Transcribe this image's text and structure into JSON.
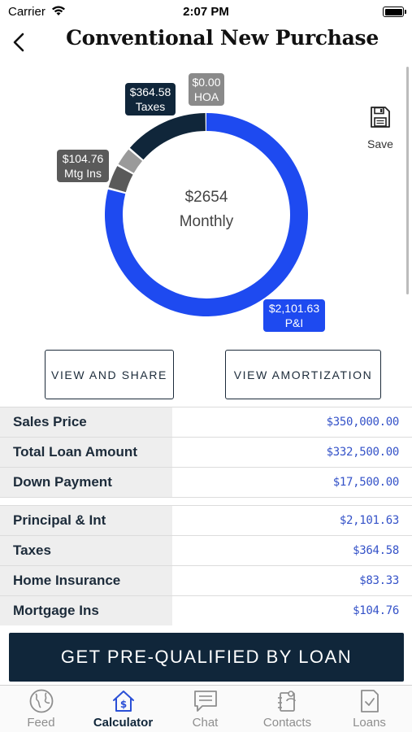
{
  "status_bar": {
    "carrier": "Carrier",
    "time": "2:07 PM"
  },
  "nav": {
    "title": "Conventional New Purchase"
  },
  "save": {
    "label": "Save"
  },
  "chart": {
    "center_amount": "$2654",
    "center_label": "Monthly",
    "tags": {
      "taxes": {
        "amount": "$364.58",
        "label": "Taxes"
      },
      "hoa": {
        "amount": "$0.00",
        "label": "HOA"
      },
      "mtg": {
        "amount": "$104.76",
        "label": "Mtg Ins"
      },
      "pi": {
        "amount": "$2,101.63",
        "label": "P&I"
      }
    },
    "colors": {
      "pi": "#1e4af0",
      "taxes": "#10263a",
      "insurance": "#9a9a9a",
      "mtg": "#5a5a5a",
      "hoa": "#8a8a8a"
    }
  },
  "chart_data": {
    "type": "pie",
    "categories": [
      "P&I",
      "Mtg Ins",
      "Home Insurance",
      "Taxes",
      "HOA"
    ],
    "values": [
      2101.63,
      104.76,
      83.33,
      364.58,
      0.0
    ]
  },
  "buttons": {
    "view_share": "VIEW AND SHARE",
    "view_amortization": "VIEW AMORTIZATION"
  },
  "table": {
    "group1": [
      {
        "label": "Sales Price",
        "value": "$350,000.00"
      },
      {
        "label": "Total Loan Amount",
        "value": "$332,500.00"
      },
      {
        "label": "Down Payment",
        "value": "$17,500.00"
      }
    ],
    "group2": [
      {
        "label": "Principal & Int",
        "value": "$2,101.63"
      },
      {
        "label": "Taxes",
        "value": "$364.58"
      },
      {
        "label": "Home Insurance",
        "value": "$83.33"
      },
      {
        "label": "Mortgage Ins",
        "value": "$104.76"
      }
    ]
  },
  "cta": {
    "label": "GET PRE-QUALIFIED BY LOAN"
  },
  "tabs": [
    {
      "label": "Feed",
      "icon": "globe-icon"
    },
    {
      "label": "Calculator",
      "icon": "house-dollar-icon"
    },
    {
      "label": "Chat",
      "icon": "chat-icon"
    },
    {
      "label": "Contacts",
      "icon": "contacts-icon"
    },
    {
      "label": "Loans",
      "icon": "document-check-icon"
    }
  ]
}
